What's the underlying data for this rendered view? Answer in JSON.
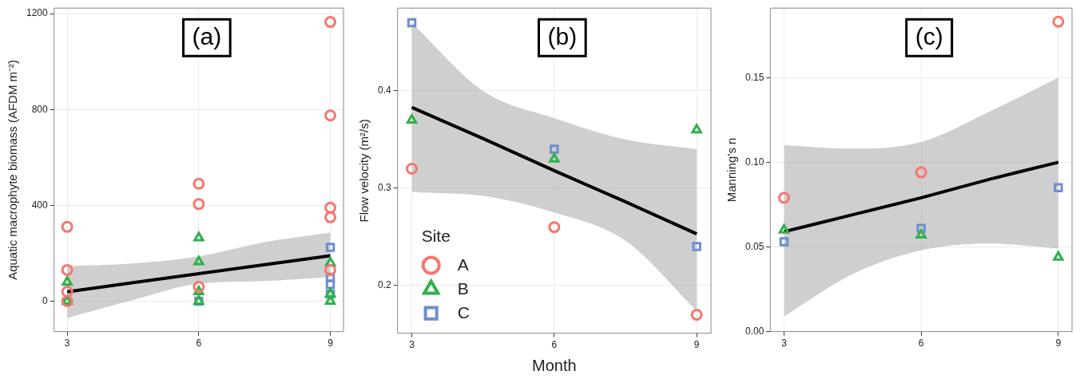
{
  "chart_data": [
    {
      "type": "scatter",
      "ylabel": "Aquatic macrophyte biomass (AFDM m⁻²)",
      "annotations": [
        "(a)"
      ],
      "xlim": [
        2.7,
        9.3
      ],
      "xticks": [
        3,
        6,
        9
      ],
      "ylim": [
        -127,
        1223
      ],
      "yticks": [
        0,
        400,
        800,
        1200
      ],
      "grid": true,
      "legend": false,
      "series": [
        {
          "color": "#f8766d",
          "marker": "circle",
          "x": [
            3,
            3,
            3,
            3,
            6,
            6,
            6,
            9,
            9,
            9,
            9,
            9
          ],
          "values": [
            310,
            130,
            40,
            0,
            490,
            405,
            60,
            1165,
            775,
            390,
            350,
            130
          ]
        },
        {
          "color": "#2eb14b",
          "marker": "triangle",
          "x": [
            3,
            3,
            6,
            6,
            6,
            6,
            9,
            9,
            9
          ],
          "values": [
            80,
            0,
            265,
            165,
            40,
            0,
            160,
            30,
            0
          ]
        },
        {
          "color": "#6c8fce",
          "marker": "square",
          "x": [
            6,
            9,
            9,
            9,
            9
          ],
          "values": [
            0,
            225,
            100,
            70,
            30
          ]
        },
        {
          "type": "line",
          "color": "#000000",
          "marker": "none",
          "x": [
            3,
            4.5,
            6,
            7.5,
            9
          ],
          "values": [
            39,
            77,
            115,
            152,
            190
          ],
          "lower": [
            -70,
            5,
            73,
            84,
            101
          ],
          "upper": [
            146,
            157,
            187,
            246,
            286
          ]
        }
      ]
    },
    {
      "type": "scatter",
      "ylabel": "Flow velocity (m²/s)",
      "xlabel": "Month",
      "annotations": [
        "(b)"
      ],
      "legend_title": "Site",
      "xlim": [
        2.7,
        9.3
      ],
      "xticks": [
        3,
        6,
        9
      ],
      "ylim": [
        0.151,
        0.485
      ],
      "yticks": [
        0.2,
        0.3,
        0.4
      ],
      "grid": true,
      "legend": "bottom left",
      "series": [
        {
          "name": "A",
          "color": "#f8766d",
          "marker": "circle",
          "x": [
            3,
            6,
            9
          ],
          "values": [
            0.32,
            0.26,
            0.17
          ]
        },
        {
          "name": "B",
          "color": "#2eb14b",
          "marker": "triangle",
          "x": [
            3,
            6,
            9
          ],
          "values": [
            0.37,
            0.33,
            0.36
          ]
        },
        {
          "name": "C",
          "color": "#6c8fce",
          "marker": "square",
          "x": [
            3,
            6,
            9
          ],
          "values": [
            0.47,
            0.34,
            0.24
          ]
        },
        {
          "type": "line",
          "color": "#000000",
          "marker": "none",
          "x": [
            3,
            4.5,
            6,
            7.5,
            9
          ],
          "values": [
            0.383,
            0.351,
            0.318,
            0.286,
            0.253
          ],
          "lower": [
            0.296,
            0.292,
            0.275,
            0.246,
            0.174
          ],
          "upper": [
            0.47,
            0.4,
            0.372,
            0.35,
            0.34
          ]
        }
      ]
    },
    {
      "type": "scatter",
      "ylabel": "Manning’s n",
      "annotations": [
        "(c)"
      ],
      "xlim": [
        2.7,
        9.3
      ],
      "xticks": [
        3,
        6,
        9
      ],
      "ylim": [
        0,
        0.191
      ],
      "yticks": [
        {
          "value": 0,
          "label": "0.00"
        },
        0.05,
        {
          "value": 0.1,
          "label": "0.10"
        },
        0.15
      ],
      "grid": true,
      "legend": false,
      "series": [
        {
          "color": "#f8766d",
          "marker": "circle",
          "x": [
            3,
            6,
            9
          ],
          "values": [
            0.079,
            0.094,
            0.183
          ]
        },
        {
          "color": "#2eb14b",
          "marker": "triangle",
          "x": [
            3,
            6,
            9
          ],
          "values": [
            0.06,
            0.057,
            0.044
          ]
        },
        {
          "color": "#6c8fce",
          "marker": "square",
          "x": [
            3,
            6,
            9
          ],
          "values": [
            0.053,
            0.061,
            0.085
          ]
        },
        {
          "type": "line",
          "color": "#000000",
          "marker": "none",
          "x": [
            3,
            4.5,
            6,
            7.5,
            9
          ],
          "values": [
            0.059,
            0.069,
            0.079,
            0.09,
            0.1
          ],
          "lower": [
            0.009,
            0.034,
            0.048,
            0.052,
            0.049
          ],
          "upper": [
            0.11,
            0.108,
            0.112,
            0.13,
            0.15
          ]
        }
      ]
    }
  ]
}
